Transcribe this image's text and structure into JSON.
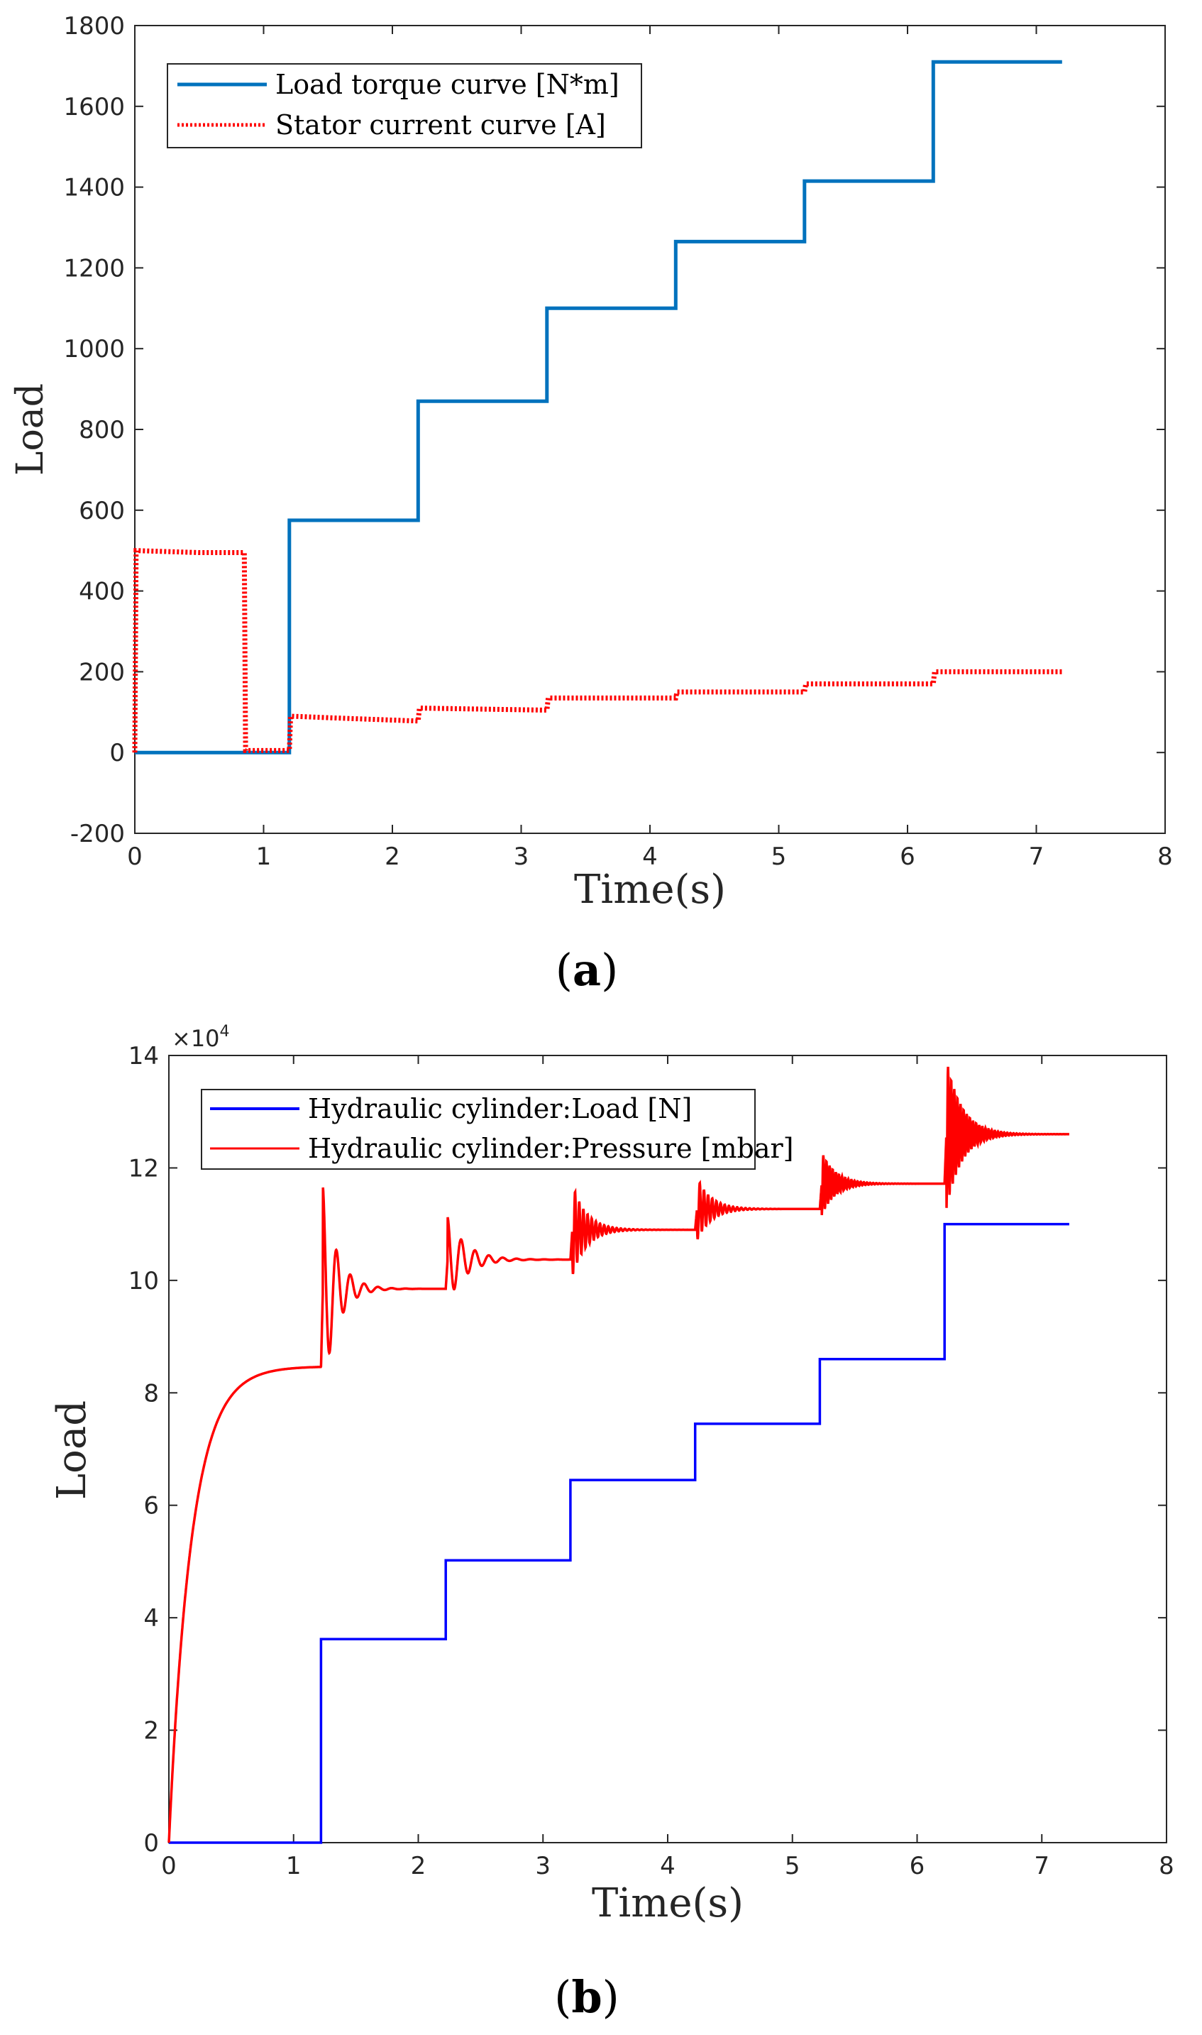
{
  "chart_data": [
    {
      "type": "line",
      "panel_label": "a",
      "xlabel": "Time(s)",
      "ylabel": "Load",
      "xlim": [
        0,
        8
      ],
      "ylim": [
        -200,
        1800
      ],
      "xticks": [
        "0",
        "1",
        "2",
        "3",
        "4",
        "5",
        "6",
        "7",
        "8"
      ],
      "yticks": [
        "-200",
        "0",
        "200",
        "400",
        "600",
        "800",
        "1000",
        "1200",
        "1400",
        "1600",
        "1800"
      ],
      "legend_position": "top-left",
      "series": [
        {
          "name": "Load torque curve [N*m]",
          "color": "#0072BD",
          "style": "solid",
          "x": [
            0,
            1.2,
            1.2,
            2.2,
            2.2,
            3.2,
            3.2,
            4.2,
            4.2,
            5.2,
            5.2,
            6.2,
            6.2,
            7.2
          ],
          "y": [
            0,
            0,
            575,
            575,
            870,
            870,
            1100,
            1100,
            1265,
            1265,
            1415,
            1415,
            1710,
            1710
          ]
        },
        {
          "name": "Stator current curve [A]",
          "color": "#FF0000",
          "style": "dotted",
          "x": [
            0,
            0.01,
            0.5,
            0.85,
            0.86,
            1.0,
            1.2,
            1.21,
            1.6,
            2.2,
            2.21,
            3.2,
            3.21,
            4.2,
            4.21,
            5.2,
            5.21,
            6.2,
            6.21,
            7.2
          ],
          "y": [
            0,
            500,
            495,
            495,
            5,
            5,
            5,
            90,
            85,
            78,
            110,
            105,
            135,
            135,
            150,
            150,
            170,
            170,
            200,
            200
          ]
        }
      ]
    },
    {
      "type": "line",
      "panel_label": "b",
      "xlabel": "Time(s)",
      "ylabel": "Load",
      "y_multiplier": "×10",
      "y_multiplier_exp": "4",
      "xlim": [
        0,
        8
      ],
      "ylim": [
        0,
        14
      ],
      "xticks": [
        "0",
        "1",
        "2",
        "3",
        "4",
        "5",
        "6",
        "7",
        "8"
      ],
      "yticks": [
        "0",
        "2",
        "4",
        "6",
        "8",
        "10",
        "12",
        "14"
      ],
      "legend_position": "top-left",
      "series": [
        {
          "name": "Hydraulic cylinder:Load [N]",
          "color": "#0000FF",
          "style": "solid",
          "x": [
            0,
            1.22,
            1.22,
            2.22,
            2.22,
            3.22,
            3.22,
            4.22,
            4.22,
            5.22,
            5.22,
            6.22,
            6.22,
            7.22
          ],
          "y": [
            0,
            0,
            3.62,
            3.62,
            5.02,
            5.02,
            6.45,
            6.45,
            7.45,
            7.45,
            8.6,
            8.6,
            11.0,
            11.0
          ]
        },
        {
          "name": "Hydraulic cylinder:Pressure [mbar]",
          "color": "#FF0000",
          "style": "solid",
          "x": [
            0,
            1.22,
            2.22,
            3.22,
            4.22,
            5.22,
            6.22,
            7.22
          ],
          "y": [
            0,
            8.47,
            9.85,
            10.37,
            10.9,
            11.27,
            11.72,
            12.6
          ],
          "settled_levels": [
            8.47,
            9.85,
            10.37,
            10.9,
            11.27,
            11.72,
            12.6
          ]
        }
      ]
    }
  ],
  "captions": {
    "a": "a",
    "b": "b"
  }
}
